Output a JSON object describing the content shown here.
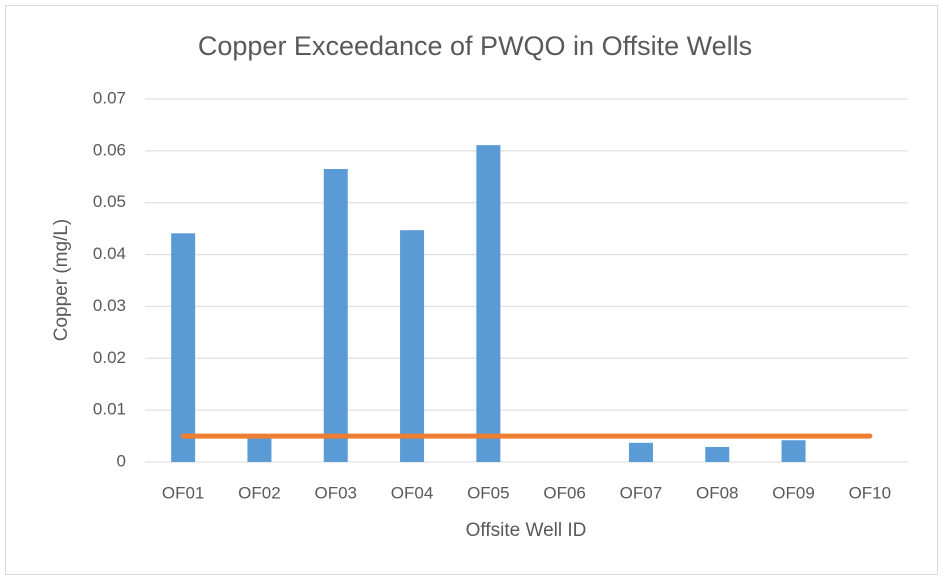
{
  "chart_data": {
    "type": "bar",
    "title": "Copper Exceedance of PWQO in Offsite Wells",
    "x_label": "Offsite Well ID",
    "y_label": "Copper (mg/L)",
    "categories": [
      "OF01",
      "OF02",
      "OF03",
      "OF04",
      "OF05",
      "OF06",
      "OF07",
      "OF08",
      "OF09",
      "OF10"
    ],
    "series": [
      {
        "type": "bar",
        "color": "#5b9bd5",
        "values": [
          0.0441,
          0.0048,
          0.0565,
          0.0447,
          0.0611,
          0,
          0.0037,
          0.0029,
          0.0042,
          0
        ]
      },
      {
        "type": "line",
        "color": "#ed7d31",
        "values": [
          0.005,
          0.005,
          0.005,
          0.005,
          0.005,
          0.005,
          0.005,
          0.005,
          0.005,
          0.005
        ]
      }
    ],
    "ylim": [
      0,
      0.07
    ],
    "yticks": [
      0,
      0.01,
      0.02,
      0.03,
      0.04,
      0.05,
      0.06,
      0.07
    ],
    "grid": true
  }
}
